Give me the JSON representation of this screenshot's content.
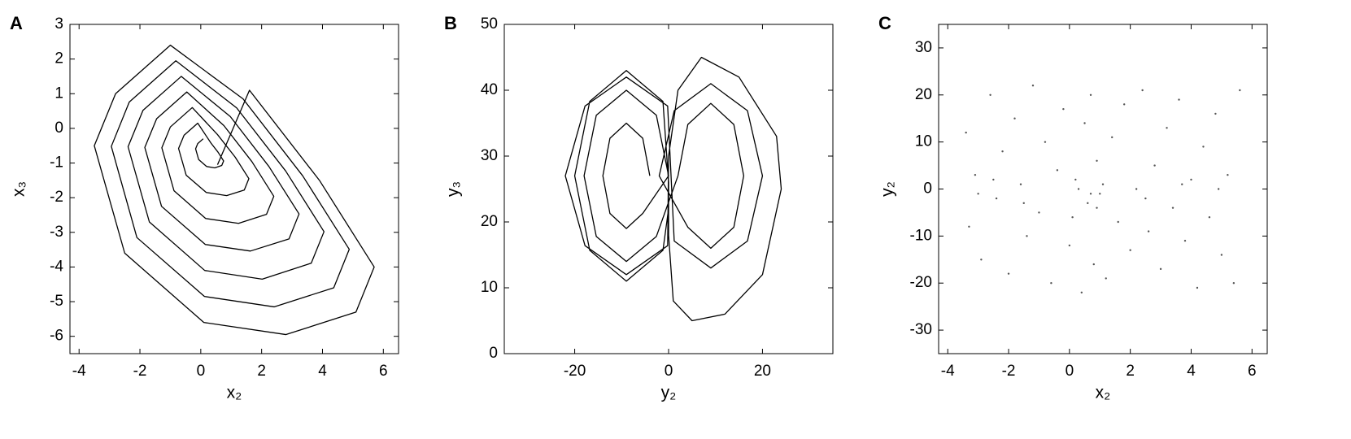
{
  "chart_data": [
    {
      "type": "line",
      "panel_label": "A",
      "xlabel": "x₂",
      "ylabel": "x₃",
      "color": "#000000",
      "xlim": [
        -4.3,
        6.5
      ],
      "xticks": [
        -4,
        -2,
        0,
        2,
        4,
        6
      ],
      "ylim": [
        -6.5,
        3
      ],
      "yticks": [
        -6,
        -5,
        -4,
        -3,
        -2,
        -1,
        0,
        1,
        2,
        3
      ],
      "x": [
        0.08,
        -0.1,
        -0.17,
        -0.07,
        0.19,
        0.46,
        0.69,
        0.75,
        0.57,
        0.34,
        -0.1,
        -0.55,
        -0.73,
        -0.48,
        0.18,
        0.85,
        1.43,
        1.58,
        1.13,
        0.55,
        -0.28,
        -1.0,
        -1.28,
        -0.88,
        0.16,
        1.24,
        2.16,
        2.4,
        1.68,
        0.76,
        -0.46,
        -1.45,
        -1.84,
        -1.29,
        0.15,
        1.63,
        2.9,
        3.23,
        2.24,
        0.97,
        -0.64,
        -1.9,
        -2.39,
        -1.69,
        0.13,
        2.02,
        3.63,
        4.05,
        2.79,
        1.18,
        -0.82,
        -2.35,
        -2.94,
        -2.1,
        0.12,
        2.41,
        4.37,
        4.88,
        3.35,
        1.39,
        -1.0,
        -2.8,
        -3.5,
        -2.5,
        0.1,
        2.8,
        5.1,
        5.7,
        3.9,
        1.6,
        0.55
      ],
      "y": [
        -0.3,
        -0.44,
        -0.59,
        -0.9,
        -1.1,
        -1.14,
        -1.07,
        -0.94,
        -0.69,
        -0.43,
        0.15,
        -0.2,
        -0.58,
        -1.35,
        -1.85,
        -1.94,
        -1.78,
        -1.45,
        -0.83,
        -0.18,
        0.6,
        0.04,
        -0.56,
        -1.8,
        -2.6,
        -2.74,
        -2.48,
        -1.96,
        -0.96,
        0.08,
        1.05,
        0.28,
        -0.55,
        -2.25,
        -3.35,
        -3.54,
        -3.19,
        -2.47,
        -1.1,
        0.34,
        1.5,
        0.52,
        -0.53,
        -2.7,
        -4.1,
        -4.35,
        -3.89,
        -2.98,
        -1.23,
        0.59,
        1.95,
        0.76,
        -0.52,
        -3.15,
        -4.85,
        -5.15,
        -4.6,
        -3.49,
        -1.37,
        0.85,
        2.4,
        1.0,
        -0.5,
        -3.6,
        -5.6,
        -5.95,
        -5.3,
        -4.0,
        -1.5,
        1.1,
        -1.05
      ]
    },
    {
      "type": "line",
      "panel_label": "B",
      "xlabel": "y₂",
      "ylabel": "y₃",
      "color": "#000000",
      "xlim": [
        -35,
        35
      ],
      "xticks": [
        -20,
        0,
        20
      ],
      "ylim": [
        0,
        50
      ],
      "yticks": [
        0,
        10,
        20,
        30,
        40,
        50
      ],
      "x": [
        -4,
        -5.5,
        -9,
        -12.5,
        -14,
        -12.5,
        -9,
        -5.5,
        0,
        -2.6,
        -9,
        -15.4,
        -18,
        -15.4,
        -9,
        -2.6,
        2,
        4.1,
        9,
        13.9,
        16,
        13.9,
        9,
        4.1,
        -2,
        1.2,
        9,
        16.8,
        20,
        16.8,
        9,
        1.2,
        -0.2,
        -9,
        -17.8,
        -22,
        -17.8,
        -9,
        -0.2,
        0,
        2,
        7,
        15,
        23,
        24,
        20,
        12,
        5,
        1,
        0,
        0,
        -1.2,
        -9,
        -16.8,
        -20,
        -16.8,
        -9,
        -1.2,
        0
      ],
      "y": [
        27,
        32.7,
        35,
        32.7,
        27,
        21.3,
        19,
        21.3,
        27,
        36.2,
        40,
        36.2,
        27,
        17.8,
        14,
        17.8,
        27,
        34.8,
        38,
        34.8,
        27,
        19.2,
        16,
        19.2,
        27,
        36.9,
        41,
        36.9,
        27,
        17.1,
        13,
        17.1,
        37.6,
        42,
        37.6,
        27,
        16.4,
        12,
        16.4,
        30,
        40,
        45,
        42,
        33,
        25,
        12,
        6,
        5,
        8,
        18,
        26,
        38.3,
        43,
        38.3,
        27,
        15.7,
        11,
        15.7,
        22
      ]
    },
    {
      "type": "scatter",
      "panel_label": "C",
      "xlabel": "x₂",
      "ylabel": "y₂",
      "color": "#555555",
      "xlim": [
        -4.3,
        6.5
      ],
      "xticks": [
        -4,
        -2,
        0,
        2,
        4,
        6
      ],
      "ylim": [
        -35,
        35
      ],
      "yticks": [
        -30,
        -20,
        -10,
        0,
        10,
        20,
        30
      ],
      "x": [
        -3.4,
        -3.3,
        -3.1,
        -2.9,
        -2.6,
        -2.4,
        -2.2,
        -2.0,
        -1.8,
        -1.6,
        -1.4,
        -1.2,
        -1.0,
        -0.8,
        -0.6,
        -0.4,
        -0.2,
        0.0,
        0.2,
        0.4,
        0.5,
        0.6,
        0.7,
        0.8,
        0.9,
        1.0,
        1.2,
        1.4,
        1.6,
        1.8,
        2.0,
        2.2,
        2.4,
        2.6,
        2.8,
        3.0,
        3.2,
        3.4,
        3.6,
        3.8,
        4.0,
        4.2,
        4.4,
        4.6,
        4.8,
        5.0,
        5.2,
        5.4,
        5.6,
        -3.0,
        -1.5,
        0.3,
        0.7,
        1.1,
        2.5,
        3.7,
        4.9,
        -2.5,
        0.1,
        0.9
      ],
      "y": [
        12,
        -8,
        3,
        -15,
        20,
        -2,
        8,
        -18,
        15,
        1,
        -10,
        22,
        -5,
        10,
        -20,
        4,
        17,
        -12,
        2,
        -22,
        14,
        -3,
        20,
        -16,
        6,
        -1,
        -19,
        11,
        -7,
        18,
        -13,
        0,
        21,
        -9,
        5,
        -17,
        13,
        -4,
        19,
        -11,
        2,
        -21,
        9,
        -6,
        16,
        -14,
        3,
        -20,
        21,
        -1,
        -3,
        0,
        -1,
        1,
        -2,
        1,
        0,
        2,
        -6,
        -4
      ]
    }
  ]
}
